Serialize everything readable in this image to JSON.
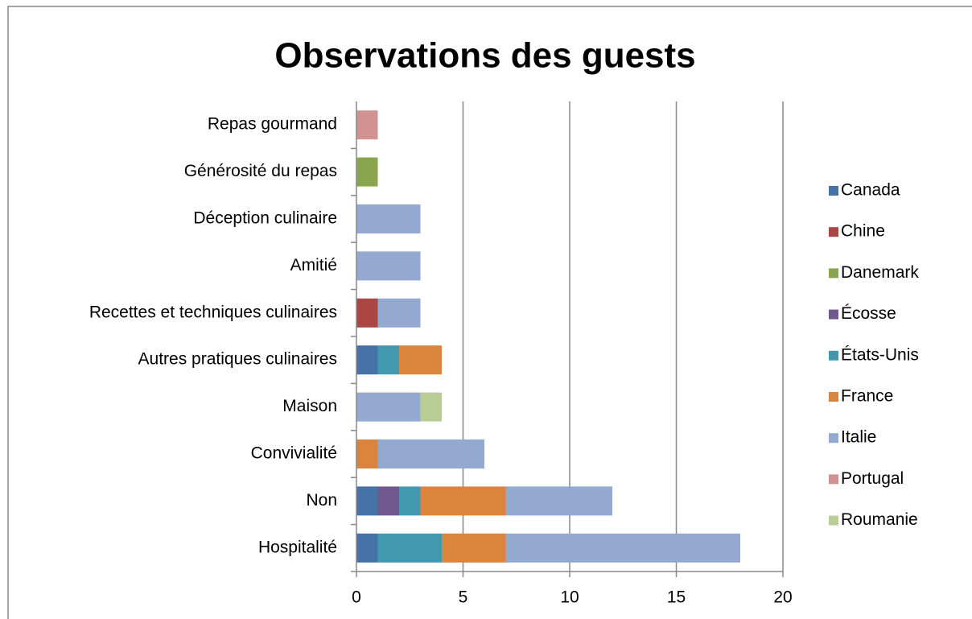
{
  "chart_data": {
    "type": "bar",
    "orientation": "horizontal",
    "stacked": true,
    "title": "Observations des guests",
    "categories": [
      "Hospitalité",
      "Non",
      "Convivialité",
      "Maison",
      "Autres pratiques culinaires",
      "Recettes et techniques culinaires",
      "Amitié",
      "Déception culinaire",
      "Générosité du repas",
      "Repas gourmand"
    ],
    "series": [
      {
        "name": "Canada",
        "color": "#4573a7",
        "values": [
          1,
          1,
          0,
          0,
          1,
          0,
          0,
          0,
          0,
          0
        ]
      },
      {
        "name": "Chine",
        "color": "#aa4643",
        "values": [
          0,
          0,
          0,
          0,
          0,
          1,
          0,
          0,
          0,
          0
        ]
      },
      {
        "name": "Danemark",
        "color": "#89a54e",
        "values": [
          0,
          0,
          0,
          0,
          0,
          0,
          0,
          0,
          1,
          0
        ]
      },
      {
        "name": "Écosse",
        "color": "#71588f",
        "values": [
          0,
          1,
          0,
          0,
          0,
          0,
          0,
          0,
          0,
          0
        ]
      },
      {
        "name": "États-Unis",
        "color": "#4198af",
        "values": [
          3,
          1,
          0,
          0,
          1,
          0,
          0,
          0,
          0,
          0
        ]
      },
      {
        "name": "France",
        "color": "#db843d",
        "values": [
          3,
          4,
          1,
          0,
          2,
          0,
          0,
          0,
          0,
          0
        ]
      },
      {
        "name": "Italie",
        "color": "#93a9cf",
        "values": [
          11,
          5,
          5,
          3,
          0,
          2,
          3,
          3,
          0,
          0
        ]
      },
      {
        "name": "Portugal",
        "color": "#d19392",
        "values": [
          0,
          0,
          0,
          0,
          0,
          0,
          0,
          0,
          0,
          1
        ]
      },
      {
        "name": "Roumanie",
        "color": "#b9cd96",
        "values": [
          0,
          0,
          0,
          1,
          0,
          0,
          0,
          0,
          0,
          0
        ]
      }
    ],
    "xlim": [
      0,
      20
    ],
    "xticks": [
      0,
      5,
      10,
      15,
      20
    ],
    "grid": true,
    "legend": "right"
  }
}
